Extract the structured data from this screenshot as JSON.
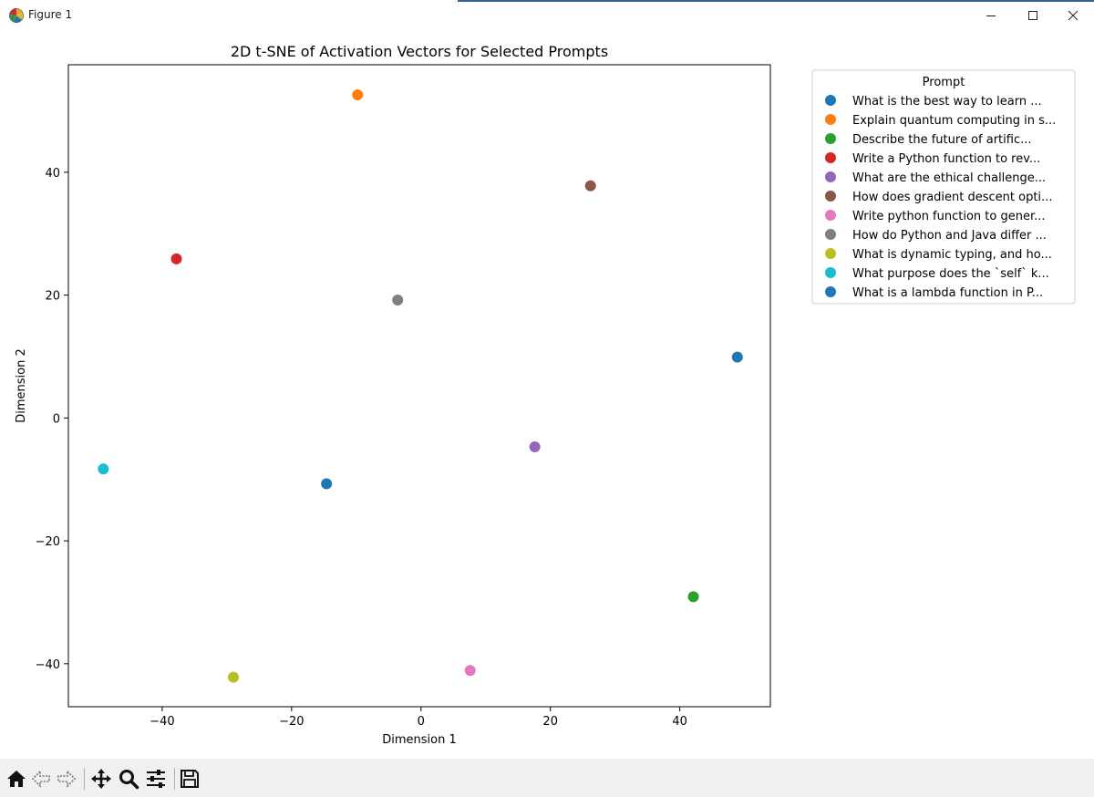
{
  "window": {
    "title": "Figure 1"
  },
  "toolbar": {
    "buttons": [
      {
        "name": "home",
        "icon": "home-icon"
      },
      {
        "name": "back",
        "icon": "back-arrow-icon"
      },
      {
        "name": "forward",
        "icon": "forward-arrow-icon"
      },
      {
        "name": "pan",
        "icon": "move-icon"
      },
      {
        "name": "zoom",
        "icon": "magnifier-icon"
      },
      {
        "name": "configure-subplots",
        "icon": "sliders-icon"
      },
      {
        "name": "save",
        "icon": "floppy-disk-icon"
      }
    ]
  },
  "chart_data": {
    "type": "scatter",
    "title": "2D t-SNE of Activation Vectors for Selected Prompts",
    "xlabel": "Dimension 1",
    "ylabel": "Dimension 2",
    "xlim": [
      -54.5,
      54
    ],
    "ylim": [
      -47,
      57.5
    ],
    "xticks": [
      -40,
      -20,
      0,
      20,
      40
    ],
    "yticks": [
      -40,
      -20,
      0,
      20,
      40
    ],
    "xtick_labels": [
      "−40",
      "−20",
      "0",
      "20",
      "40"
    ],
    "ytick_labels": [
      "−40",
      "−20",
      "0",
      "20",
      "40"
    ],
    "grid": false,
    "legend_title": "Prompt",
    "legend_location": "outside upper right",
    "series": [
      {
        "name": "What is the best way to learn ...",
        "color": "#1f77b4",
        "x": 48.9,
        "y": 9.9
      },
      {
        "name": "Explain quantum computing in s...",
        "color": "#ff7f0e",
        "x": -9.8,
        "y": 52.6
      },
      {
        "name": "Describe the future of artific...",
        "color": "#2ca02c",
        "x": 42.1,
        "y": -29.1
      },
      {
        "name": "Write a Python function to rev...",
        "color": "#d62728",
        "x": -37.8,
        "y": 25.9
      },
      {
        "name": "What are the ethical challenge...",
        "color": "#9467bd",
        "x": 17.6,
        "y": -4.7
      },
      {
        "name": "How does gradient descent opti...",
        "color": "#8c564b",
        "x": 26.2,
        "y": 37.8
      },
      {
        "name": "Write python function to gener...",
        "color": "#e377c2",
        "x": 7.6,
        "y": -41.1
      },
      {
        "name": "How do Python and Java differ ...",
        "color": "#7f7f7f",
        "x": -3.6,
        "y": 19.2
      },
      {
        "name": "What is dynamic typing, and ho...",
        "color": "#bcbd22",
        "x": -29.0,
        "y": -42.2
      },
      {
        "name": "What purpose does the `self` k...",
        "color": "#17becf",
        "x": -49.1,
        "y": -8.3
      },
      {
        "name": "What is a lambda function in P...",
        "color": "#1f77b4",
        "x": -14.6,
        "y": -10.7
      }
    ]
  }
}
